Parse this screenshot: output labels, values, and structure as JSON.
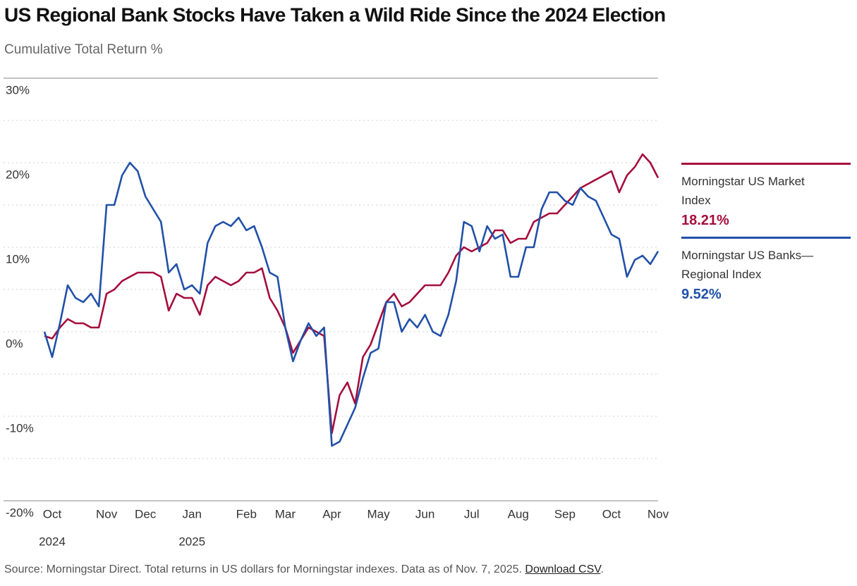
{
  "chart_data": {
    "type": "line",
    "title": "US Regional Bank Stocks Have Taken a Wild Ride Since the 2024 Election",
    "subtitle": "Cumulative Total Return %",
    "categories": [
      null,
      "Oct",
      null,
      null,
      null,
      null,
      null,
      null,
      "Nov",
      null,
      null,
      null,
      null,
      "Dec",
      null,
      null,
      null,
      null,
      null,
      "Jan",
      null,
      null,
      null,
      null,
      null,
      null,
      "Feb",
      null,
      null,
      null,
      null,
      "Mar",
      null,
      null,
      null,
      null,
      null,
      "Apr",
      null,
      null,
      null,
      null,
      null,
      "May",
      null,
      null,
      null,
      null,
      null,
      "Jun",
      null,
      null,
      null,
      null,
      null,
      "Jul",
      null,
      null,
      null,
      null,
      null,
      "Aug",
      null,
      null,
      null,
      null,
      null,
      "Sep",
      null,
      null,
      null,
      null,
      null,
      "Oct",
      null,
      null,
      null,
      null,
      null,
      "Nov"
    ],
    "category_years": [
      null,
      "2024",
      null,
      null,
      null,
      null,
      null,
      null,
      null,
      null,
      null,
      null,
      null,
      null,
      null,
      null,
      null,
      null,
      null,
      "2025",
      null,
      null,
      null,
      null,
      null,
      null,
      null,
      null,
      null,
      null,
      null,
      null,
      null,
      null,
      null,
      null,
      null,
      null,
      null,
      null,
      null,
      null,
      null,
      null,
      null,
      null,
      null,
      null,
      null,
      null,
      null,
      null,
      null,
      null,
      null,
      null,
      null,
      null,
      null,
      null,
      null,
      null,
      null,
      null,
      null,
      null,
      null,
      null,
      null,
      null,
      null,
      null,
      null,
      null,
      null,
      null,
      null,
      null,
      null,
      null
    ],
    "series": [
      {
        "name": "Morningstar US Market Index",
        "color": "#a50d3d",
        "end_label": "18.21%",
        "values": [
          -0.5,
          -0.8,
          0.5,
          1.5,
          1.0,
          1.0,
          0.5,
          0.5,
          4.5,
          5.0,
          6.0,
          6.5,
          7.0,
          7.0,
          7.0,
          6.5,
          2.5,
          4.5,
          4.0,
          4.0,
          2.0,
          5.5,
          6.5,
          6.0,
          5.5,
          6.0,
          7.0,
          7.0,
          7.5,
          4.0,
          2.5,
          0.5,
          -2.5,
          -1.0,
          0.5,
          0.0,
          -0.5,
          -12.0,
          -7.5,
          -6.0,
          -8.5,
          -3.0,
          -1.5,
          1.0,
          3.5,
          4.5,
          3.0,
          3.5,
          4.5,
          5.5,
          5.5,
          5.5,
          7.0,
          9.0,
          10.0,
          9.5,
          10.0,
          10.5,
          12.0,
          12.0,
          10.5,
          11.0,
          11.0,
          13.0,
          13.5,
          14.0,
          14.0,
          15.0,
          16.0,
          17.0,
          17.5,
          18.0,
          18.5,
          19.0,
          16.5,
          18.5,
          19.5,
          21.0,
          20.0,
          18.21
        ]
      },
      {
        "name": "Morningstar US Banks—Regional Index",
        "color": "#2150a8",
        "end_label": "9.52%",
        "values": [
          0,
          -3.0,
          1.0,
          5.5,
          4.0,
          3.5,
          4.5,
          3.0,
          15.0,
          15.0,
          18.5,
          20.0,
          19.0,
          16.0,
          14.5,
          13.0,
          7.0,
          8.0,
          5.0,
          5.5,
          4.5,
          10.5,
          12.5,
          13.0,
          12.5,
          13.5,
          12.0,
          12.5,
          10.0,
          7.0,
          6.5,
          0.5,
          -3.5,
          -1.0,
          1.0,
          -0.5,
          0.5,
          -13.5,
          -13.0,
          -11.0,
          -9.0,
          -5.5,
          -2.5,
          -2.0,
          3.5,
          3.5,
          0.0,
          1.5,
          0.5,
          2.0,
          0.0,
          -0.5,
          2.0,
          6.0,
          13.0,
          12.5,
          9.5,
          12.5,
          11.0,
          11.5,
          6.5,
          6.5,
          10.0,
          10.0,
          14.5,
          16.5,
          16.5,
          15.5,
          15.0,
          17.0,
          16.0,
          15.5,
          13.5,
          11.5,
          11.0,
          6.5,
          8.5,
          9.0,
          8.0,
          9.52
        ]
      }
    ],
    "ylim": [
      -20,
      30
    ],
    "yticks": [
      {
        "value": 30,
        "label": "30%"
      },
      {
        "value": 20,
        "label": "20%"
      },
      {
        "value": 10,
        "label": "10%"
      },
      {
        "value": 0,
        "label": "0%"
      },
      {
        "value": -10,
        "label": "-10%"
      },
      {
        "value": -20,
        "label": "-20%"
      }
    ],
    "minor_yticks": [
      25,
      15,
      5,
      -5,
      -15
    ],
    "grid": true,
    "legend": "right",
    "source": "Source: Morningstar Direct. Total returns in US dollars for Morningstar indexes. Data as of Nov. 7, 2025.",
    "link": "Download CSV",
    "link_suffix": "."
  }
}
